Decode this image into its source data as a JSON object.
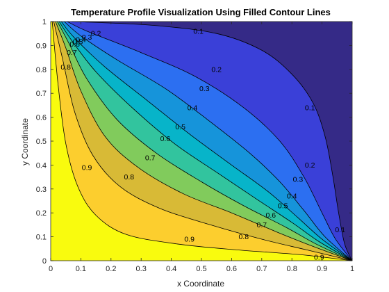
{
  "chart_data": {
    "type": "contour",
    "title": "Temperature Profile Visualization Using Filled Contour Lines",
    "xlabel": "x Coordinate",
    "ylabel": "y Coordinate",
    "xlim": [
      0,
      1
    ],
    "ylim": [
      0,
      1
    ],
    "xticks": [
      "0",
      "0.1",
      "0.2",
      "0.3",
      "0.4",
      "0.5",
      "0.6",
      "0.7",
      "0.8",
      "0.9",
      "1"
    ],
    "yticks": [
      "0",
      "0.1",
      "0.2",
      "0.3",
      "0.4",
      "0.5",
      "0.6",
      "0.7",
      "0.8",
      "0.9",
      "1"
    ],
    "grid": false,
    "colormap": "parula",
    "filled": true,
    "levels": [
      0.1,
      0.2,
      0.3,
      0.4,
      0.5,
      0.6,
      0.7,
      0.8,
      0.9
    ],
    "level_colors": [
      "#352a87",
      "#3a40d8",
      "#2c6ff1",
      "#1694da",
      "#07b4c9",
      "#32c49e",
      "#81cb5c",
      "#d8ba36",
      "#fcce2e",
      "#f9fb0e"
    ],
    "contour_lines": [
      {
        "level": 0.1,
        "points": [
          [
            0.07,
            1.0
          ],
          [
            0.33,
            0.985
          ],
          [
            0.55,
            0.95
          ],
          [
            0.7,
            0.88
          ],
          [
            0.8,
            0.78
          ],
          [
            0.87,
            0.66
          ],
          [
            0.91,
            0.52
          ],
          [
            0.935,
            0.36
          ],
          [
            0.955,
            0.2
          ],
          [
            0.975,
            0.07
          ],
          [
            1.0,
            0.0
          ]
        ]
      },
      {
        "level": 0.2,
        "points": [
          [
            0.055,
            1.0
          ],
          [
            0.12,
            0.96
          ],
          [
            0.3,
            0.87
          ],
          [
            0.48,
            0.77
          ],
          [
            0.64,
            0.64
          ],
          [
            0.76,
            0.5
          ],
          [
            0.84,
            0.35
          ],
          [
            0.9,
            0.2
          ],
          [
            0.945,
            0.09
          ],
          [
            1.0,
            0.0
          ]
        ]
      },
      {
        "level": 0.3,
        "points": [
          [
            0.045,
            1.0
          ],
          [
            0.1,
            0.94
          ],
          [
            0.22,
            0.84
          ],
          [
            0.38,
            0.72
          ],
          [
            0.52,
            0.59
          ],
          [
            0.66,
            0.45
          ],
          [
            0.76,
            0.33
          ],
          [
            0.84,
            0.21
          ],
          [
            0.91,
            0.1
          ],
          [
            1.0,
            0.0
          ]
        ]
      },
      {
        "level": 0.4,
        "points": [
          [
            0.035,
            1.0
          ],
          [
            0.08,
            0.93
          ],
          [
            0.18,
            0.81
          ],
          [
            0.32,
            0.67
          ],
          [
            0.46,
            0.53
          ],
          [
            0.6,
            0.4
          ],
          [
            0.72,
            0.29
          ],
          [
            0.82,
            0.18
          ],
          [
            0.9,
            0.09
          ],
          [
            1.0,
            0.0
          ]
        ]
      },
      {
        "level": 0.5,
        "points": [
          [
            0.028,
            1.0
          ],
          [
            0.07,
            0.92
          ],
          [
            0.15,
            0.79
          ],
          [
            0.27,
            0.64
          ],
          [
            0.41,
            0.49
          ],
          [
            0.55,
            0.37
          ],
          [
            0.68,
            0.26
          ],
          [
            0.8,
            0.16
          ],
          [
            0.89,
            0.08
          ],
          [
            1.0,
            0.0
          ]
        ]
      },
      {
        "level": 0.6,
        "points": [
          [
            0.022,
            1.0
          ],
          [
            0.06,
            0.91
          ],
          [
            0.12,
            0.76
          ],
          [
            0.22,
            0.59
          ],
          [
            0.35,
            0.45
          ],
          [
            0.5,
            0.33
          ],
          [
            0.64,
            0.23
          ],
          [
            0.78,
            0.14
          ],
          [
            0.88,
            0.07
          ],
          [
            1.0,
            0.0
          ]
        ]
      },
      {
        "level": 0.7,
        "points": [
          [
            0.016,
            1.0
          ],
          [
            0.05,
            0.89
          ],
          [
            0.1,
            0.71
          ],
          [
            0.18,
            0.52
          ],
          [
            0.29,
            0.39
          ],
          [
            0.44,
            0.28
          ],
          [
            0.6,
            0.2
          ],
          [
            0.75,
            0.12
          ],
          [
            0.87,
            0.06
          ],
          [
            1.0,
            0.0
          ]
        ]
      },
      {
        "level": 0.8,
        "points": [
          [
            0.01,
            1.0
          ],
          [
            0.04,
            0.84
          ],
          [
            0.08,
            0.62
          ],
          [
            0.14,
            0.44
          ],
          [
            0.23,
            0.31
          ],
          [
            0.36,
            0.22
          ],
          [
            0.53,
            0.15
          ],
          [
            0.7,
            0.09
          ],
          [
            0.85,
            0.045
          ],
          [
            1.0,
            0.0
          ]
        ]
      },
      {
        "level": 0.9,
        "points": [
          [
            0.005,
            1.0
          ],
          [
            0.025,
            0.73
          ],
          [
            0.05,
            0.49
          ],
          [
            0.09,
            0.31
          ],
          [
            0.15,
            0.19
          ],
          [
            0.25,
            0.11
          ],
          [
            0.42,
            0.07
          ],
          [
            0.62,
            0.045
          ],
          [
            0.83,
            0.025
          ],
          [
            1.0,
            0.0
          ]
        ]
      }
    ],
    "contour_labels": [
      {
        "text": "0.1",
        "x": 0.49,
        "y": 0.96
      },
      {
        "text": "0.2",
        "x": 0.55,
        "y": 0.8
      },
      {
        "text": "0.3",
        "x": 0.51,
        "y": 0.72
      },
      {
        "text": "0.4",
        "x": 0.47,
        "y": 0.64
      },
      {
        "text": "0.5",
        "x": 0.43,
        "y": 0.56
      },
      {
        "text": "0.6",
        "x": 0.38,
        "y": 0.51
      },
      {
        "text": "0.7",
        "x": 0.33,
        "y": 0.43
      },
      {
        "text": "0.8",
        "x": 0.26,
        "y": 0.35
      },
      {
        "text": "0.9",
        "x": 0.12,
        "y": 0.39
      },
      {
        "text": "0.1",
        "x": 0.86,
        "y": 0.64
      },
      {
        "text": "0.2",
        "x": 0.86,
        "y": 0.4
      },
      {
        "text": "0.3",
        "x": 0.82,
        "y": 0.34
      },
      {
        "text": "0.4",
        "x": 0.8,
        "y": 0.27
      },
      {
        "text": "0.5",
        "x": 0.77,
        "y": 0.23
      },
      {
        "text": "0.6",
        "x": 0.73,
        "y": 0.19
      },
      {
        "text": "0.7",
        "x": 0.7,
        "y": 0.15
      },
      {
        "text": "0.8",
        "x": 0.64,
        "y": 0.1
      },
      {
        "text": "0.9",
        "x": 0.46,
        "y": 0.09
      },
      {
        "text": "0.9",
        "x": 0.89,
        "y": 0.015
      },
      {
        "text": "0.1",
        "x": 0.96,
        "y": 0.13
      },
      {
        "text": "0.2",
        "x": 0.15,
        "y": 0.95
      },
      {
        "text": "0.3",
        "x": 0.12,
        "y": 0.935
      },
      {
        "text": "0.4",
        "x": 0.1,
        "y": 0.925
      },
      {
        "text": "0.5",
        "x": 0.09,
        "y": 0.915
      },
      {
        "text": "0.6",
        "x": 0.08,
        "y": 0.905
      },
      {
        "text": "0.7",
        "x": 0.07,
        "y": 0.87
      },
      {
        "text": "0.8",
        "x": 0.05,
        "y": 0.81
      }
    ]
  }
}
